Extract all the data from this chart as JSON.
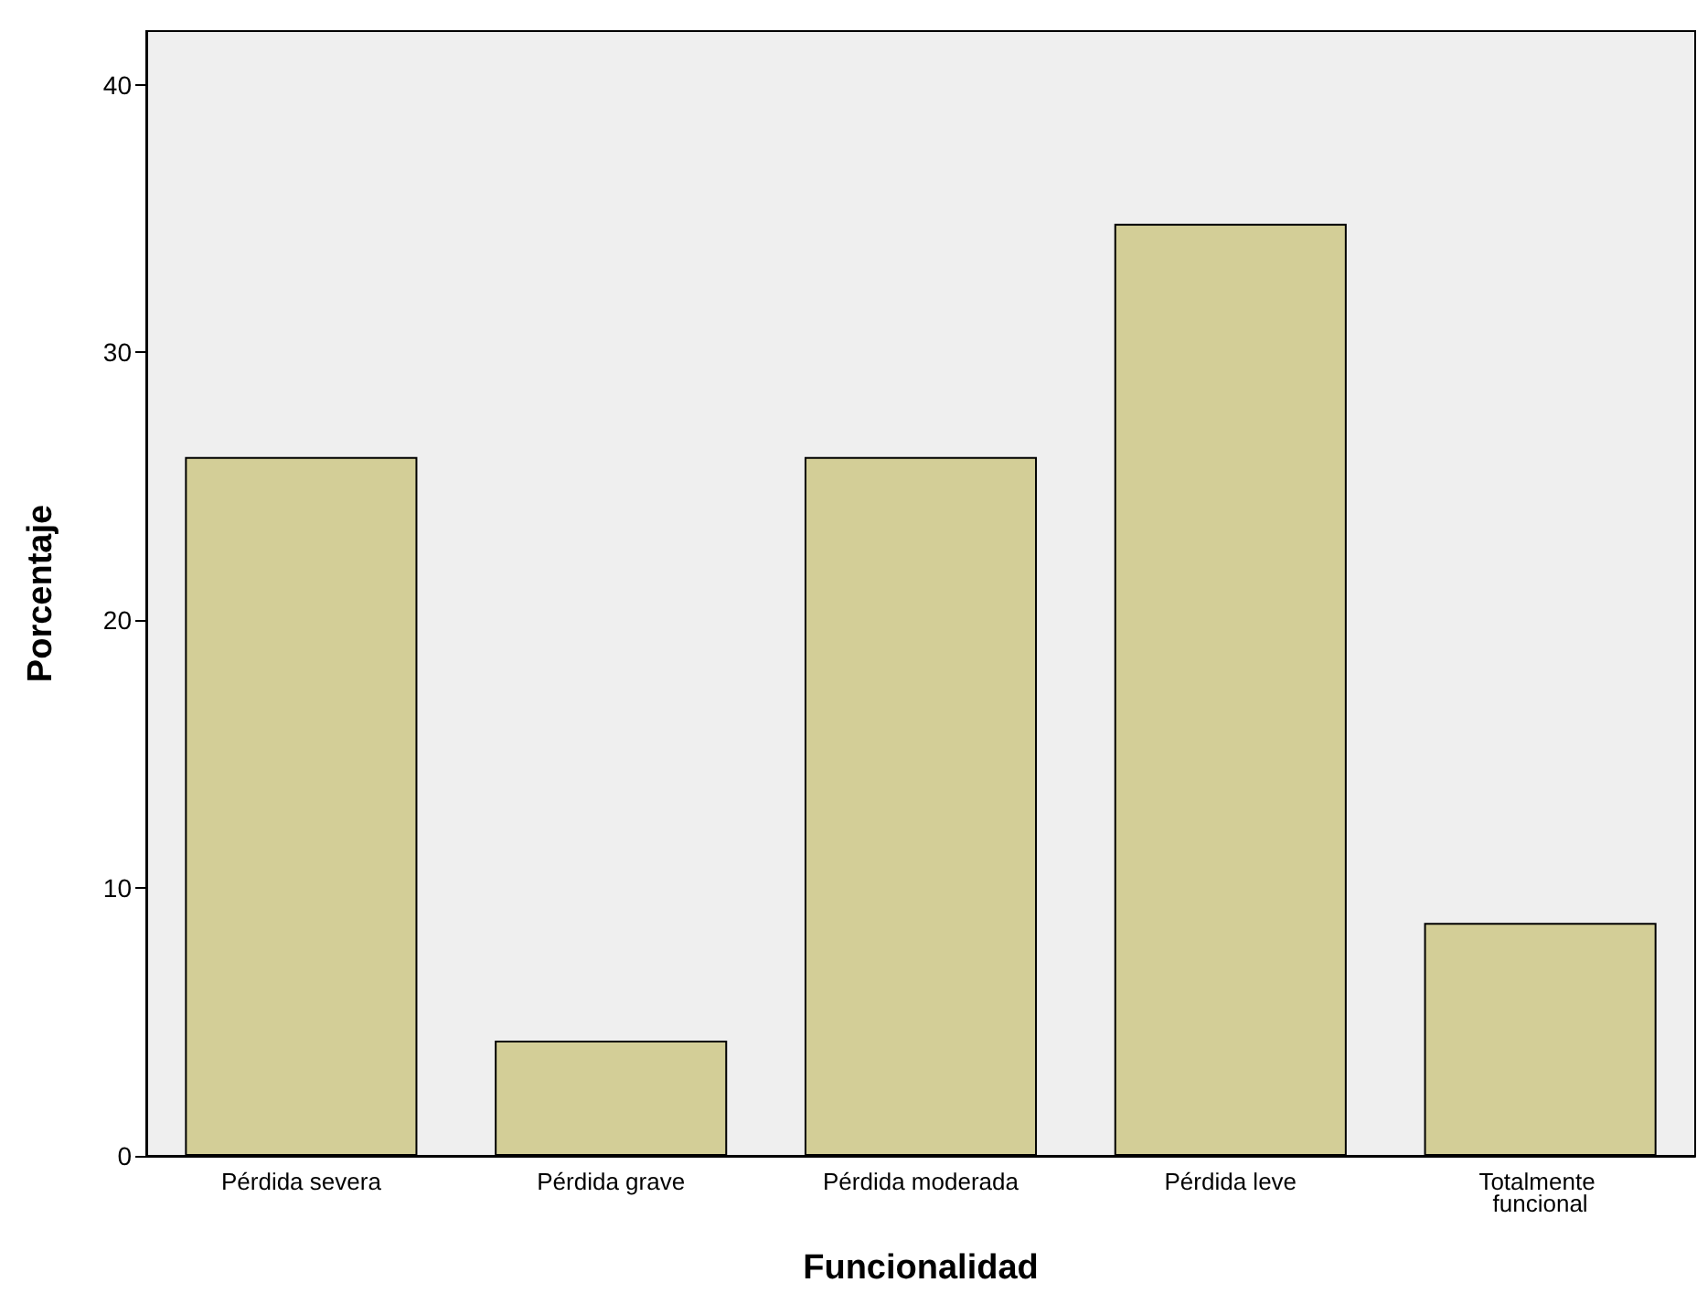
{
  "chart_data": {
    "type": "bar",
    "xlabel": "Funcionalidad",
    "ylabel": "Porcentaje",
    "categories": [
      "Pérdida severa",
      "Pérdida grave",
      "Pérdida moderada",
      "Pérdida leve",
      "Totalmente funcional"
    ],
    "values": [
      26.1,
      4.3,
      26.1,
      34.8,
      8.7
    ],
    "color": "#d3ce97",
    "ylim": [
      0,
      42
    ],
    "yticks": [
      0,
      10,
      20,
      30,
      40
    ],
    "grid": false
  }
}
